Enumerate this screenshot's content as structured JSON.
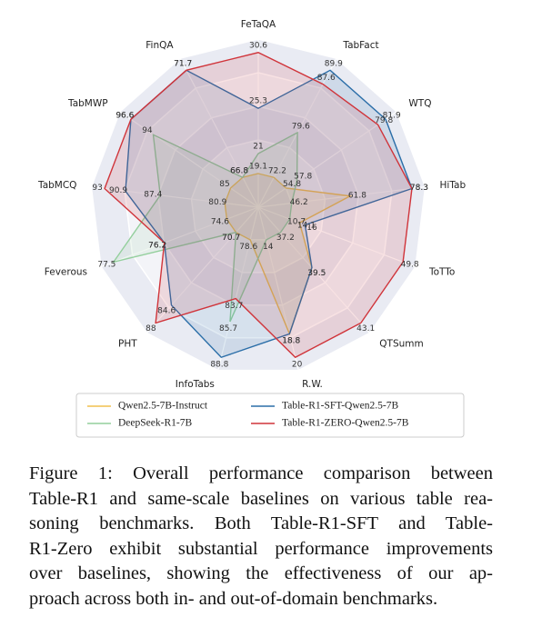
{
  "chart_data": {
    "type": "radar",
    "categories": [
      "FeTaQA",
      "TabFact",
      "WTQ",
      "HiTab",
      "ToTTo",
      "QTSumm",
      "R.W.",
      "InfoTabs",
      "PHT",
      "Feverous",
      "TabMCQ",
      "TabMWP",
      "FinQA"
    ],
    "series": [
      {
        "name": "Qwen2.5-7B-Instruct",
        "color": "#f2c14e",
        "values": [
          19.1,
          72.2,
          54.8,
          61.8,
          14.1,
          39.5,
          18.8,
          78.6,
          70.7,
          74.6,
          80.9,
          85.0,
          66.8
        ]
      },
      {
        "name": "DeepSeek-R1-7B",
        "color": "#93cf9c",
        "values": [
          21.0,
          79.6,
          57.8,
          46.2,
          10.7,
          37.2,
          14.0,
          85.7,
          70.7,
          77.5,
          87.4,
          94.0,
          66.8
        ]
      },
      {
        "name": "Table-R1-SFT-Qwen2.5-7B",
        "color": "#2b6ea8",
        "values": [
          25.3,
          89.9,
          81.9,
          78.3,
          16.0,
          39.5,
          18.8,
          88.8,
          84.6,
          76.2,
          90.9,
          96.6,
          71.7
        ]
      },
      {
        "name": "Table-R1-ZERO-Qwen2.5-7B",
        "color": "#d0343a",
        "values": [
          30.6,
          87.6,
          79.8,
          78.3,
          49.8,
          43.1,
          20.0,
          83.7,
          88.0,
          76.2,
          93.0,
          96.6,
          71.7
        ]
      }
    ],
    "caption": [
      "Figure 1: Overall performance comparison between",
      "Table-R1 and same-scale baselines on various table rea-",
      "soning benchmarks. Both Table-R1-SFT and Table-",
      "R1-Zero exhibit substantial performance improvements",
      "over baselines, showing the effectiveness of our ap-",
      "proach across both in- and out-of-domain benchmarks."
    ]
  }
}
